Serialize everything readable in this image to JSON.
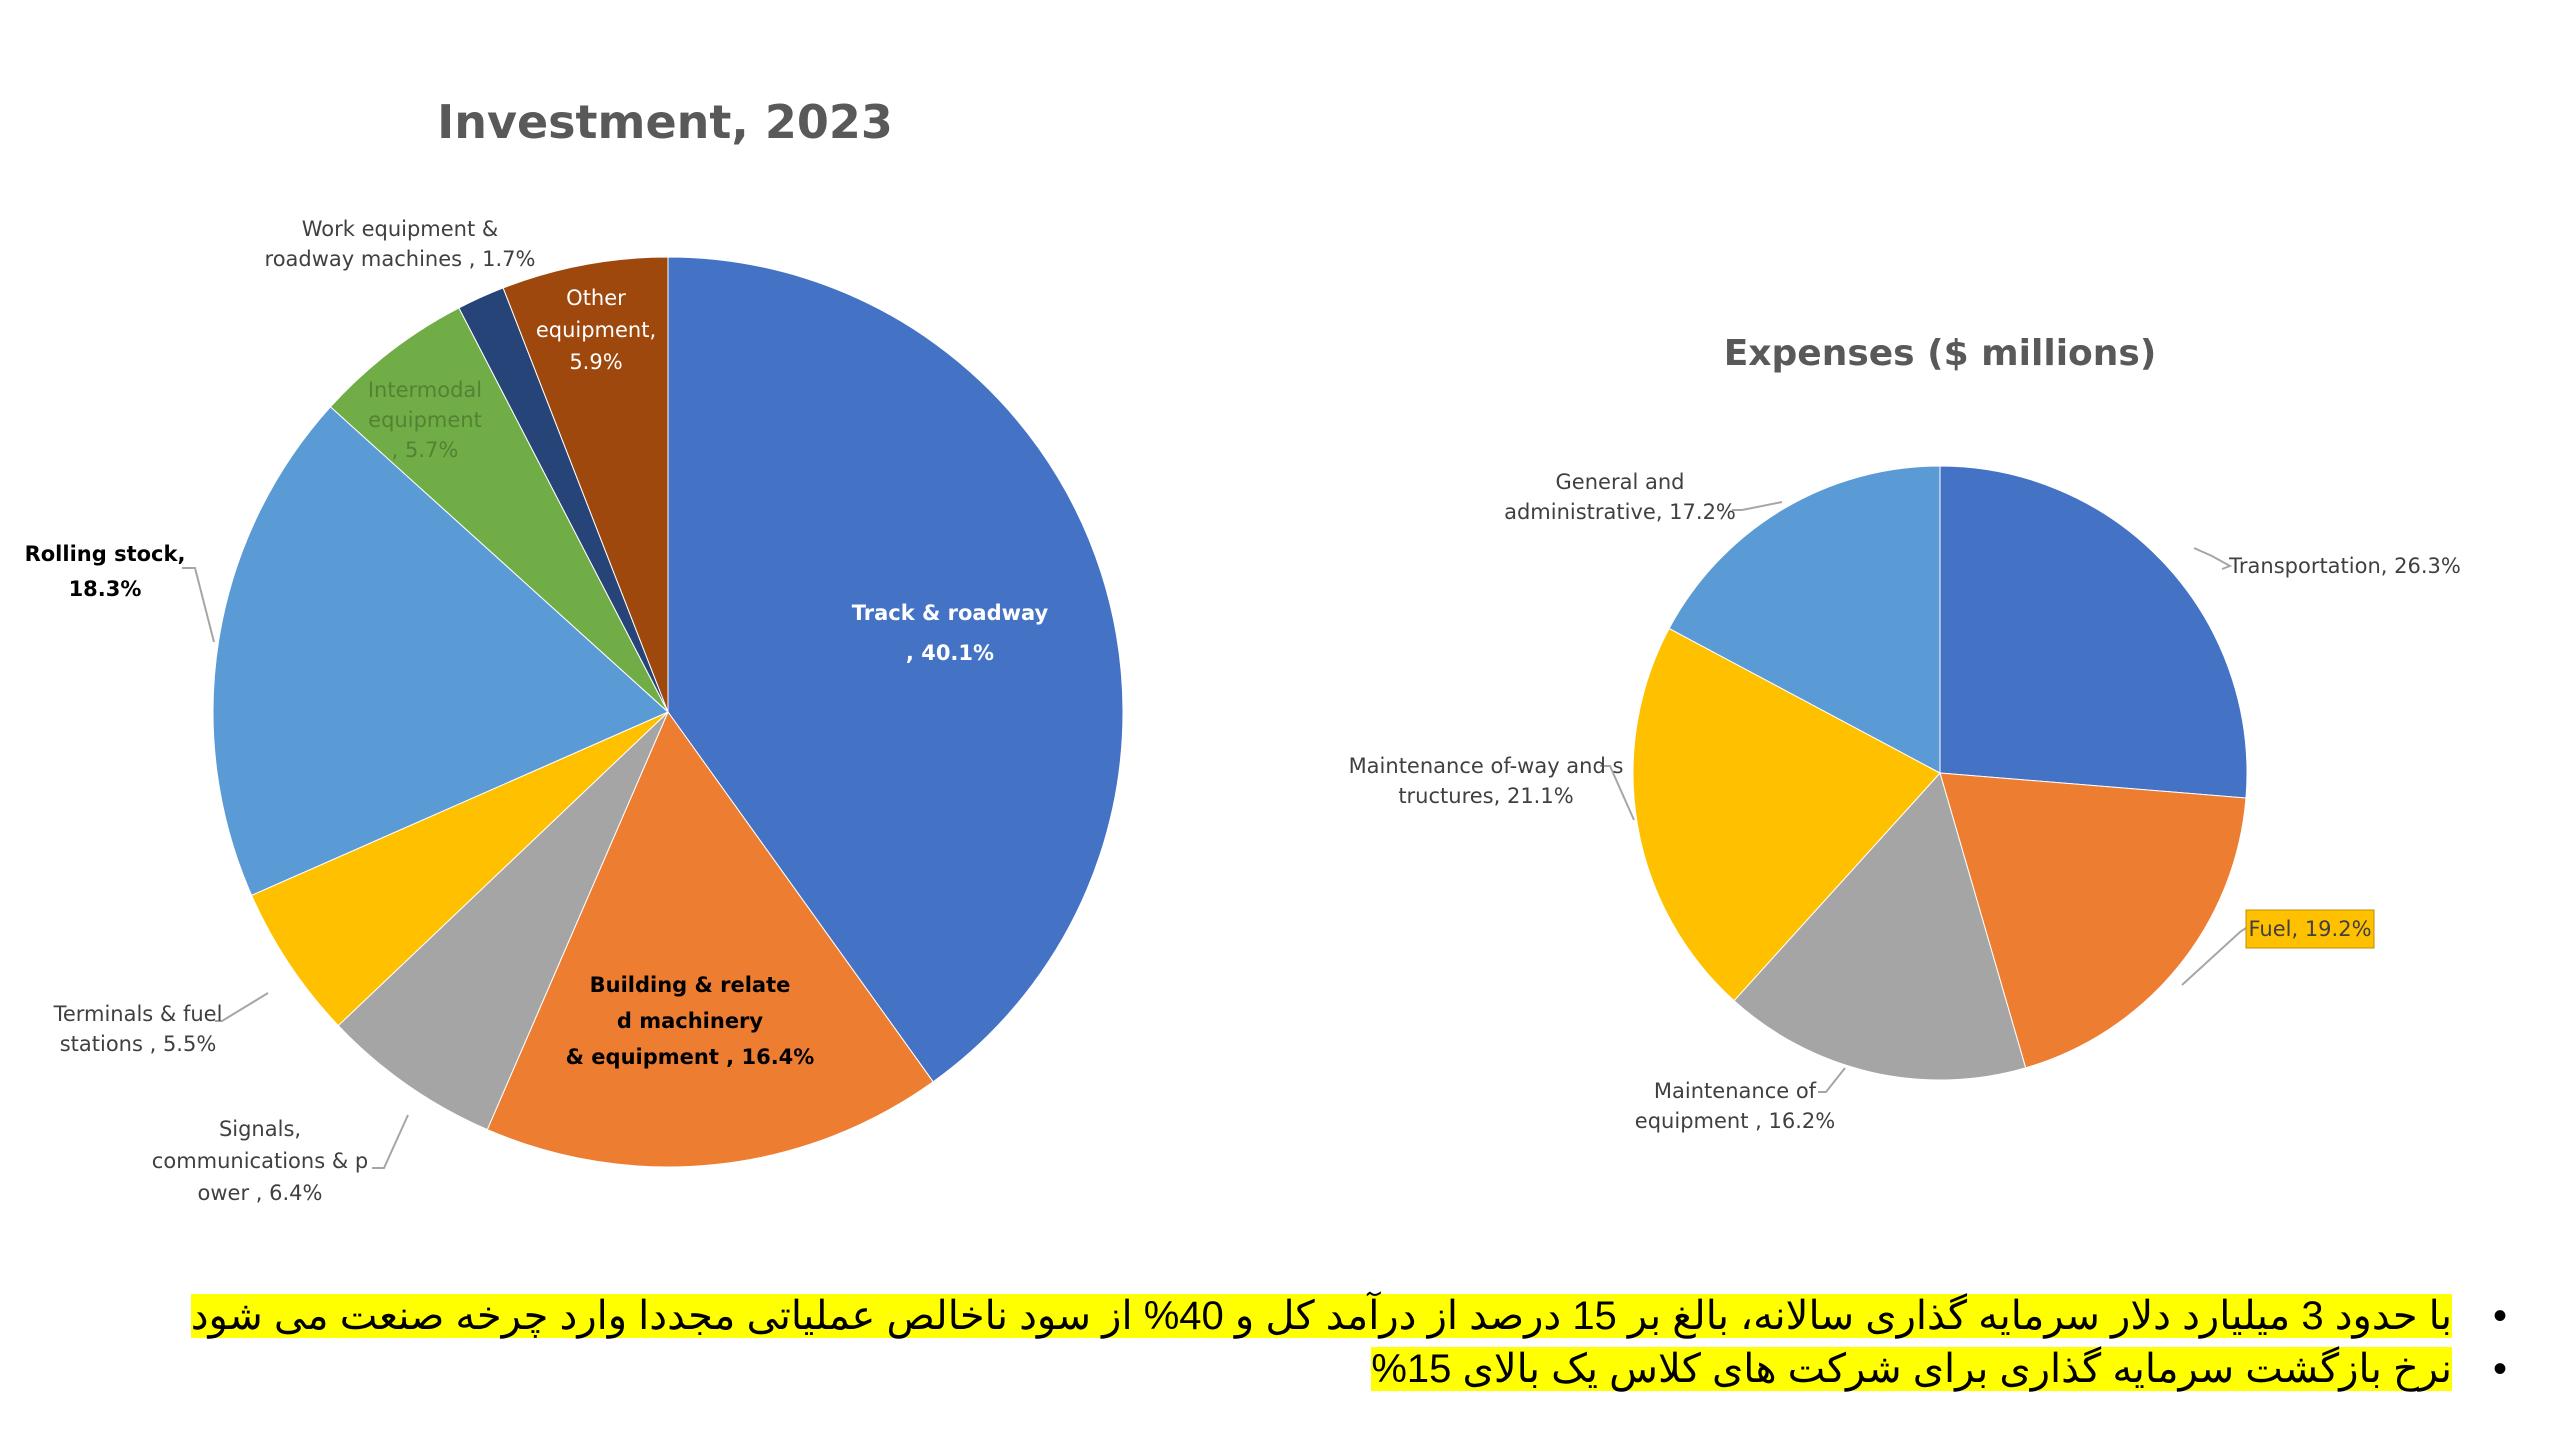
{
  "chart_data": [
    {
      "type": "pie",
      "title": "Investment, 2023",
      "slices": [
        {
          "label": "Track & roadway , 40.1%",
          "value": 40.1,
          "color": "#4472c4"
        },
        {
          "label": "Building & related machinery & equipment , 16.4%",
          "value": 16.4,
          "color": "#ed7d31"
        },
        {
          "label": "Signals, communications & power , 6.4%",
          "value": 6.4,
          "color": "#a5a5a5"
        },
        {
          "label": "Terminals & fuel stations , 5.5%",
          "value": 5.5,
          "color": "#ffc000"
        },
        {
          "label": "Rolling stock, 18.3%",
          "value": 18.3,
          "color": "#5b9bd5"
        },
        {
          "label": "Intermodal equipment , 5.7%",
          "value": 5.7,
          "color": "#70ad47"
        },
        {
          "label": "Work equipment & roadway machines , 1.7%",
          "value": 1.7,
          "color": "#264478"
        },
        {
          "label": "Other equipment, 5.9%",
          "value": 5.9,
          "color": "#9e480e"
        }
      ]
    },
    {
      "type": "pie",
      "title": "Expenses ($ millions)",
      "slices": [
        {
          "label": "Transportation, 26.3%",
          "value": 26.3,
          "color": "#4472c4"
        },
        {
          "label": "Fuel, 19.2%",
          "value": 19.2,
          "color": "#ed7d31",
          "highlight": "#ffc000"
        },
        {
          "label": "Maintenance of equipment , 16.2%",
          "value": 16.2,
          "color": "#a5a5a5"
        },
        {
          "label": "Maintenance of-way and structures, 21.1%",
          "value": 21.1,
          "color": "#ffc000"
        },
        {
          "label": "General and administrative, 17.2%",
          "value": 17.2,
          "color": "#5b9bd5"
        }
      ]
    }
  ],
  "notes": [
    "با حدود 3 میلیارد دلار سرمایه گذاری سالانه، بالغ بر 15 درصد از درآمد کل و 40% از سود ناخالص عملیاتی مجددا وارد چرخه صنعت می شود",
    "نرخ بازگشت سرمایه گذاری برای شرکت های کلاس یک بالای 15%"
  ],
  "bullet_glyph": "•",
  "highlight_color": "#ffff00"
}
